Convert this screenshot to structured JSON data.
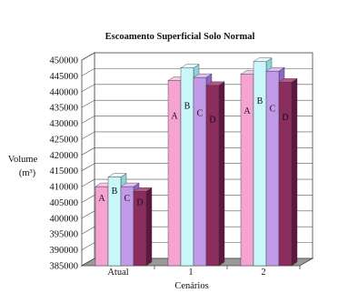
{
  "chart_data": {
    "type": "bar",
    "title": "Escoamento Superficial Solo Normal",
    "xlabel": "Cenários",
    "ylabel": "Volume",
    "ylabel_unit": "(m³)",
    "ylim": [
      385000,
      450000
    ],
    "ytick_step": 5000,
    "y_tick_labels": [
      "385000",
      "390000",
      "395000",
      "400000",
      "405000",
      "410000",
      "415000",
      "420000",
      "425000",
      "430000",
      "435000",
      "440000",
      "445000",
      "450000"
    ],
    "categories": [
      "Atual",
      "1",
      "2"
    ],
    "series": [
      {
        "name": "A",
        "values": [
          410000,
          443500,
          445500
        ]
      },
      {
        "name": "B",
        "values": [
          413000,
          447500,
          449500
        ]
      },
      {
        "name": "C",
        "values": [
          410000,
          444500,
          446500
        ]
      },
      {
        "name": "D",
        "values": [
          408500,
          442000,
          443000
        ]
      }
    ],
    "bar_labels": [
      "A",
      "B",
      "C",
      "D"
    ],
    "colors": {
      "A": {
        "front": "#f4a3d2",
        "top": "#f9c8e4",
        "side": "#d46aa8"
      },
      "B": {
        "front": "#c9f6f8",
        "top": "#e6fcfd",
        "side": "#8fd3d8"
      },
      "C": {
        "front": "#c19ae8",
        "top": "#dcc3f4",
        "side": "#9064c4"
      },
      "D": {
        "front": "#8b2d5e",
        "top": "#b5558a",
        "side": "#5f173e"
      }
    },
    "grid": true,
    "legend": "none"
  }
}
